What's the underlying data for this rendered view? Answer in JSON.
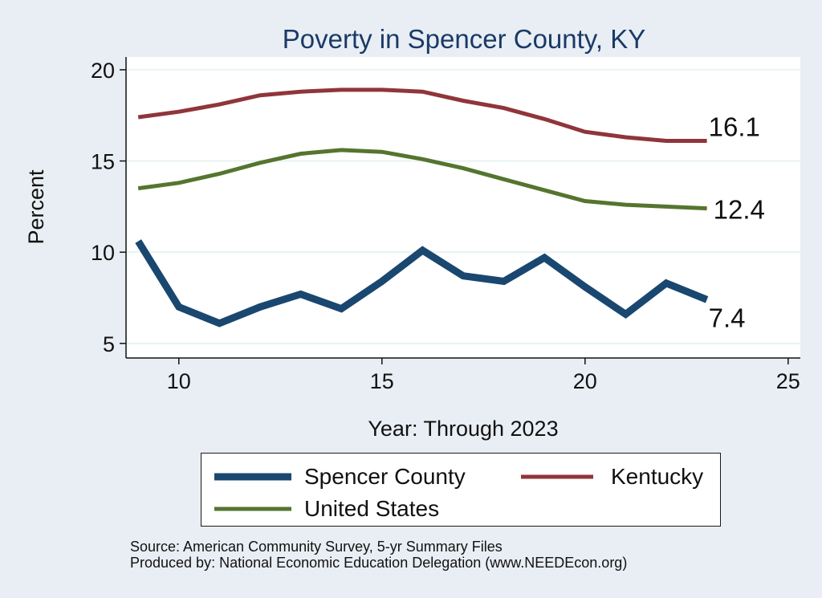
{
  "chart_data": {
    "type": "line",
    "title": "Poverty in Spencer County, KY",
    "xlabel": "Year: Through 2023",
    "ylabel": "Percent",
    "xlim": [
      8.7,
      25.3
    ],
    "ylim": [
      4.2,
      20.7
    ],
    "xticks": [
      10,
      15,
      20,
      25
    ],
    "yticks": [
      5,
      10,
      15,
      20
    ],
    "grid": true,
    "x": [
      9,
      10,
      11,
      12,
      13,
      14,
      15,
      16,
      17,
      18,
      19,
      20,
      21,
      22,
      23
    ],
    "series": [
      {
        "name": "Spencer County",
        "color": "#1a476f",
        "values": [
          10.6,
          7.0,
          6.1,
          7.0,
          7.7,
          6.9,
          8.4,
          10.1,
          8.7,
          8.4,
          9.7,
          8.1,
          6.6,
          8.3,
          7.4
        ],
        "end_label": "7.4"
      },
      {
        "name": "Kentucky",
        "color": "#90353b",
        "values": [
          17.4,
          17.7,
          18.1,
          18.6,
          18.8,
          18.9,
          18.9,
          18.8,
          18.3,
          17.9,
          17.3,
          16.6,
          16.3,
          16.1,
          16.1
        ],
        "end_label": "16.1"
      },
      {
        "name": "United States",
        "color": "#55752f",
        "values": [
          13.5,
          13.8,
          14.3,
          14.9,
          15.4,
          15.6,
          15.5,
          15.1,
          14.6,
          14.0,
          13.4,
          12.8,
          12.6,
          12.5,
          12.4
        ],
        "end_label": "12.4"
      }
    ]
  },
  "legend": {
    "items": [
      {
        "label": "Spencer County",
        "color": "#1a476f"
      },
      {
        "label": "Kentucky",
        "color": "#90353b"
      },
      {
        "label": "United States",
        "color": "#55752f"
      }
    ]
  },
  "notes": {
    "source": "Source: American Community Survey, 5-yr Summary Files",
    "produced": "Produced by: National Economic Education Delegation (www.NEEDEcon.org)"
  },
  "colors": {
    "page_background": "#e9eef4",
    "plot_background": "#ffffff",
    "title_color": "#1a3a66"
  }
}
